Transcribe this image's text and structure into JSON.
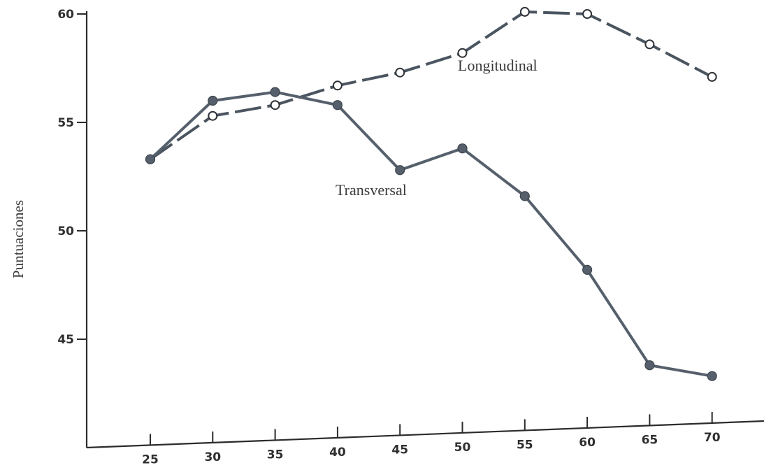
{
  "chart_data": {
    "type": "line",
    "title": "",
    "xlabel": "",
    "ylabel": "Puntuaciones",
    "x_ticks": [
      "25",
      "30",
      "35",
      "40",
      "45",
      "50",
      "55",
      "60",
      "65",
      "70"
    ],
    "y_ticks": [
      "45",
      "50",
      "55",
      "60"
    ],
    "xlim": [
      20,
      75
    ],
    "ylim": [
      40.5,
      60
    ],
    "grid": false,
    "legend": "none",
    "colors": {
      "axis": "#2b2b2b",
      "transversal": "#56606c",
      "longitudinal": "#4a5560",
      "text": "#333333"
    },
    "series": [
      {
        "name": "Transversal",
        "style": "solid",
        "marker": "filled-circle",
        "x": [
          25,
          30,
          35,
          40,
          45,
          50,
          55,
          60,
          65,
          70
        ],
        "y": [
          53.3,
          56.0,
          56.4,
          55.8,
          52.8,
          53.8,
          51.6,
          48.2,
          43.8,
          43.3
        ]
      },
      {
        "name": "Longitudinal",
        "style": "dashed",
        "marker": "open-circle",
        "x": [
          25,
          30,
          35,
          40,
          45,
          50,
          55,
          60,
          65,
          70
        ],
        "y": [
          53.3,
          55.3,
          55.8,
          56.7,
          57.3,
          58.2,
          60.1,
          60.0,
          58.6,
          57.1
        ]
      }
    ]
  }
}
